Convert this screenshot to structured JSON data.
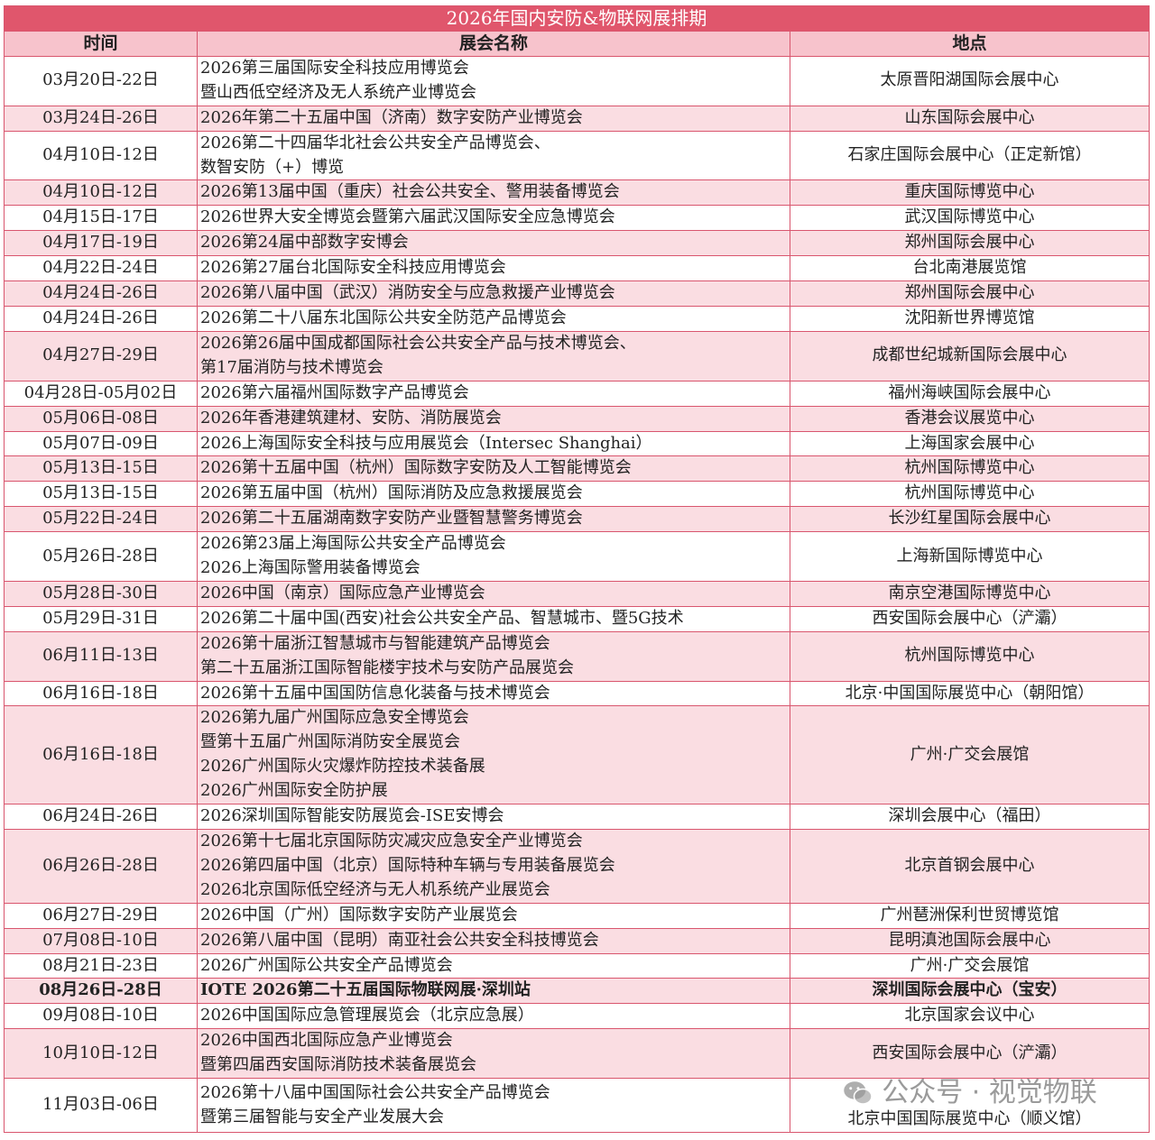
{
  "title": "2026年国内安防&物联网展排期",
  "headers": [
    "时间",
    "展会名称",
    "地点"
  ],
  "colors": {
    "title_bg": "#e0566c",
    "header_bg": "#f7c3cc",
    "row_alt": "#fadde2",
    "border": "#d9566e"
  },
  "rows": [
    {
      "date": "03月20日-22日",
      "names": [
        "2026第三届国际安全科技应用博览会",
        "暨山西低空经济及无人系统产业博览会"
      ],
      "venue": "太原晋阳湖国际会展中心"
    },
    {
      "date": "03月24日-26日",
      "names": [
        "2026年第二十五届中国（济南）数字安防产业博览会"
      ],
      "venue": "山东国际会展中心"
    },
    {
      "date": "04月10日-12日",
      "names": [
        "2026第二十四届华北社会公共安全产品博览会、",
        "数智安防（+）博览"
      ],
      "venue": "石家庄国际会展中心（正定新馆）"
    },
    {
      "date": "04月10日-12日",
      "names": [
        "2026第13届中国（重庆）社会公共安全、警用装备博览会"
      ],
      "venue": "重庆国际博览中心"
    },
    {
      "date": "04月15日-17日",
      "names": [
        "2026世界大安全博览会暨第六届武汉国际安全应急博览会"
      ],
      "venue": "武汉国际博览中心"
    },
    {
      "date": "04月17日-19日",
      "names": [
        "2026第24届中部数字安博会"
      ],
      "venue": "郑州国际会展中心"
    },
    {
      "date": "04月22日-24日",
      "names": [
        "2026第27届台北国际安全科技应用博览会"
      ],
      "venue": "台北南港展览馆"
    },
    {
      "date": "04月24日-26日",
      "names": [
        "2026第八届中国（武汉）消防安全与应急救援产业博览会"
      ],
      "venue": "郑州国际会展中心"
    },
    {
      "date": "04月24日-26日",
      "names": [
        "2026第二十八届东北国际公共安全防范产品博览会"
      ],
      "venue": "沈阳新世界博览馆"
    },
    {
      "date": "04月27日-29日",
      "names": [
        "2026第26届中国成都国际社会公共安全产品与技术博览会、",
        "第17届消防与技术博览会"
      ],
      "venue": "成都世纪城新国际会展中心"
    },
    {
      "date": "04月28日-05月02日",
      "names": [
        "2026第六届福州国际数字产品博览会"
      ],
      "venue": "福州海峡国际会展中心"
    },
    {
      "date": "05月06日-08日",
      "names": [
        "2026年香港建筑建材、安防、消防展览会"
      ],
      "venue": "香港会议展览中心"
    },
    {
      "date": "05月07日-09日",
      "names": [
        "2026上海国际安全科技与应用展览会（Intersec Shanghai）"
      ],
      "venue": "上海国家会展中心"
    },
    {
      "date": "05月13日-15日",
      "names": [
        "2026第十五届中国（杭州）国际数字安防及人工智能博览会"
      ],
      "venue": "杭州国际博览中心"
    },
    {
      "date": "05月13日-15日",
      "names": [
        "2026第五届中国（杭州）国际消防及应急救援展览会"
      ],
      "venue": "杭州国际博览中心"
    },
    {
      "date": "05月22日-24日",
      "names": [
        "2026第二十五届湖南数字安防产业暨智慧警务博览会"
      ],
      "venue": "长沙红星国际会展中心"
    },
    {
      "date": "05月26日-28日",
      "names": [
        "2026第23届上海国际公共安全产品博览会",
        "2026上海国际警用装备博览会"
      ],
      "venue": "上海新国际博览中心"
    },
    {
      "date": "05月28日-30日",
      "names": [
        "2026中国（南京）国际应急产业博览会"
      ],
      "venue": "南京空港国际博览中心"
    },
    {
      "date": "05月29日-31日",
      "names": [
        "2026第二十届中国(西安)社会公共安全产品、智慧城市、暨5G技术"
      ],
      "venue": "西安国际会展中心（浐灞）"
    },
    {
      "date": "06月11日-13日",
      "names": [
        "2026第十届浙江智慧城市与智能建筑产品博览会",
        "第二十五届浙江国际智能楼宇技术与安防产品展览会"
      ],
      "venue": "杭州国际博览中心"
    },
    {
      "date": "06月16日-18日",
      "names": [
        "2026第十五届中国国防信息化装备与技术博览会"
      ],
      "venue": "北京·中国国际展览中心（朝阳馆）"
    },
    {
      "date": "06月16日-18日",
      "names": [
        "2026第九届广州国际应急安全博览会",
        "暨第十五届广州国际消防安全展览会",
        "2026广州国际火灾爆炸防控技术装备展",
        "2026广州国际安全防护展"
      ],
      "venue": "广州·广交会展馆"
    },
    {
      "date": "06月24日-26日",
      "names": [
        "2026深圳国际智能安防展览会-ISE安博会"
      ],
      "venue": "深圳会展中心（福田）"
    },
    {
      "date": "06月26日-28日",
      "names": [
        "2026第十七届北京国际防灾减灾应急安全产业博览会",
        "2026第四届中国（北京）国际特种车辆与专用装备展览会",
        "2026北京国际低空经济与无人机系统产业展览会"
      ],
      "venue": "北京首钢会展中心"
    },
    {
      "date": "06月27日-29日",
      "names": [
        "2026中国（广州）国际数字安防产业展览会"
      ],
      "venue": "广州琶洲保利世贸博览馆"
    },
    {
      "date": "07月08日-10日",
      "names": [
        "2026第八届中国（昆明）南亚社会公共安全科技博览会"
      ],
      "venue": "昆明滇池国际会展中心"
    },
    {
      "date": "08月21日-23日",
      "names": [
        "2026广州国际公共安全产品博览会"
      ],
      "venue": "广州·广交会展馆"
    },
    {
      "date": "08月26日-28日",
      "names": [
        "IOTE 2026第二十五届国际物联网展·深圳站"
      ],
      "venue": "深圳国际会展中心（宝安）",
      "bold": true
    },
    {
      "date": "09月08日-10日",
      "names": [
        "2026中国国际应急管理展览会（北京应急展）"
      ],
      "venue": "北京国家会议中心"
    },
    {
      "date": "10月10日-12日",
      "names": [
        "2026中国西北国际应急产业博览会",
        "暨第四届西安国际消防技术装备展览会"
      ],
      "venue": "西安国际会展中心（浐灞）"
    },
    {
      "date": "11月03日-06日",
      "names": [
        "2026第十八届中国国际社会公共安全产品博览会",
        "暨第三届智能与安全产业发展大会"
      ],
      "venue": "北京中国国际展览中心（顺义馆）"
    }
  ],
  "watermark": {
    "text": "公众号 · 视觉物联",
    "icon": "wechat-icon"
  }
}
